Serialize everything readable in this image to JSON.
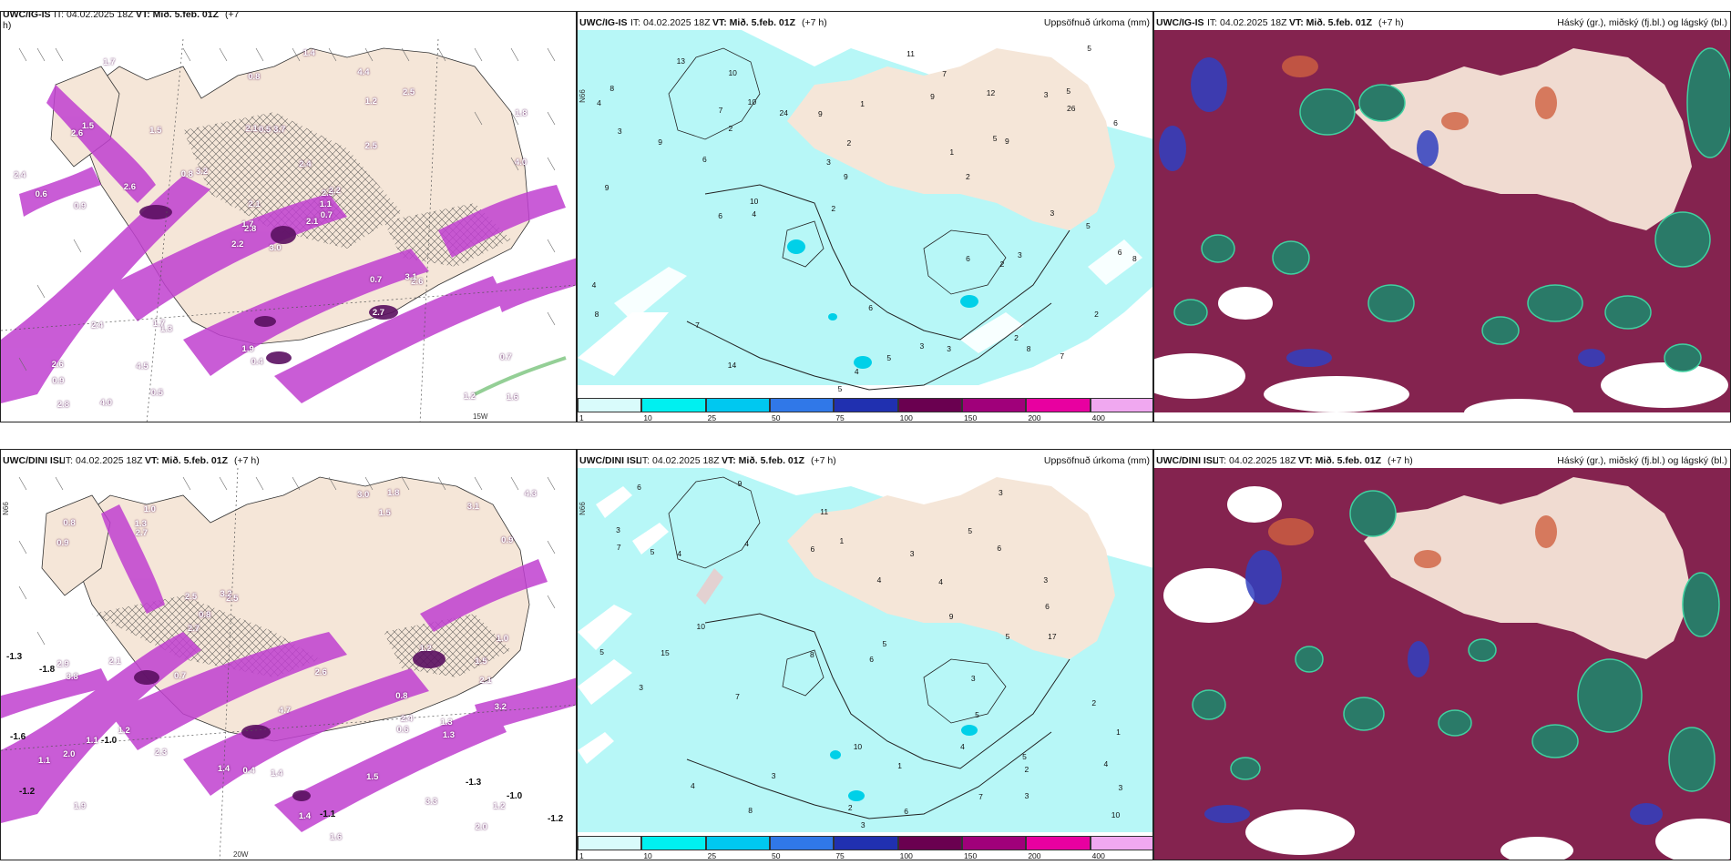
{
  "panels": {
    "top_left": {
      "model": "UWC/IG-IS",
      "it": "IT: 04.02.2025 18Z",
      "vt": "VT: Mið. 5.feb. 01Z",
      "lead": "(+7",
      "lead2": "h)",
      "labels": [
        "3.0",
        "2.6",
        "2.8",
        "2.6",
        "2.3",
        "1.3",
        "4.4",
        "3.7",
        "1.2",
        "2.1",
        "1.7",
        "1.6",
        "0.9",
        "1.8",
        "2.2",
        "2.5",
        "4.0",
        "2.1",
        "2.4",
        "2.4",
        "3.2",
        "0.9",
        "4.5",
        "0.5",
        "2.2",
        "2.6",
        "1.5",
        "0.8",
        "0.6",
        "0.7",
        "4.0",
        "1.7",
        "1.9",
        "2.1",
        "1.5",
        "2.5",
        "1.7",
        "1.2",
        "0.7",
        "3.1",
        "1.4",
        "0.8",
        "2.6",
        "2.7",
        "0.5",
        "2.4",
        "1.1",
        "2.8",
        "0.4",
        "0.7"
      ],
      "coord": "15W"
    },
    "top_mid": {
      "model": "UWC/IG-IS",
      "it": "IT: 04.02.2025 18Z",
      "vt": "VT: Mið. 5.feb. 01Z",
      "lead": "(+7 h)",
      "right": "Uppsöfnuð úrkoma (mm)",
      "coord": "N66",
      "numbers": [
        "3",
        "2",
        "2",
        "4",
        "3",
        "5",
        "6",
        "4",
        "5",
        "8",
        "6",
        "10",
        "5",
        "7",
        "9",
        "14",
        "10",
        "9",
        "7",
        "3",
        "8",
        "5",
        "9",
        "6",
        "12",
        "6",
        "26",
        "7",
        "13",
        "6",
        "4",
        "3",
        "5",
        "9",
        "8",
        "10",
        "24",
        "9",
        "11",
        "8",
        "9",
        "7",
        "3",
        "2",
        "5",
        "6",
        "4",
        "3",
        "2",
        "3",
        "2",
        "1",
        "2",
        "2",
        "1"
      ]
    },
    "top_right": {
      "model": "UWC/IG-IS",
      "it": "IT: 04.02.2025 18Z",
      "vt": "VT: Mið. 5.feb. 01Z",
      "lead": "(+7 h)",
      "right": "Háský (gr.), miðský (fj.bl.) og lágský (bl.)"
    },
    "bot_left": {
      "model": "UWC/DINI ISL",
      "it": "IT: 04.02.2025 18Z",
      "vt": "VT: Mið. 5.feb. 01Z",
      "lead": "(+7 h)",
      "labels": [
        "0.8",
        "2.1",
        "1.9",
        "1.0",
        "2.5",
        "3.3",
        "2.0",
        "1.5",
        "2.5",
        "1.6",
        "0.9",
        "2.9",
        "0.8",
        "1.2",
        "1.4",
        "1.0",
        "4.7",
        "2.6",
        "3.2",
        "1.2",
        "4.3",
        "3.1",
        "2.7",
        "3.2",
        "3.0",
        "1.3",
        "2.4",
        "3.8",
        "2.7",
        "1.2",
        "1.4",
        "1.5",
        "0.8",
        "0.7",
        "1.5",
        "1.3",
        "0.6",
        "2.1",
        "1.4",
        "1.1",
        "0.9",
        "1.8",
        "2.0",
        "0.4",
        "1.3",
        "2.3",
        "1.1"
      ],
      "neg_labels": [
        "-1.3",
        "-1.8",
        "-1.6",
        "-1.0",
        "-1.2",
        "-1.1",
        "-1.0",
        "-1.3",
        "-1.2"
      ],
      "coord": "20W",
      "coord_n": "N66"
    },
    "bot_mid": {
      "model": "UWC/DINI ISL",
      "it": "IT: 04.02.2025 18Z",
      "vt": "VT: Mið. 5.feb. 01Z",
      "lead": "(+7 h)",
      "right": "Uppsöfnuð úrkoma (mm)",
      "coord": "N66",
      "numbers": [
        "4",
        "2",
        "3",
        "3",
        "2",
        "1",
        "6",
        "5",
        "10",
        "3",
        "5",
        "3",
        "3",
        "5",
        "3",
        "6",
        "1",
        "4",
        "1",
        "5",
        "7",
        "10",
        "9",
        "8",
        "6",
        "4",
        "6",
        "10",
        "5",
        "11",
        "4",
        "15",
        "3",
        "17",
        "7",
        "6",
        "9",
        "4",
        "7",
        "3",
        "6",
        "5",
        "5",
        "8",
        "4",
        "3",
        "4",
        "2",
        "3"
      ]
    },
    "bot_right": {
      "model": "UWC/DINI ISL",
      "it": "IT: 04.02.2025 18Z",
      "vt": "VT: Mið. 5.feb. 01Z",
      "lead": "(+7 h)",
      "right": "Háský (gr.), miðský (fj.bl.) og lágský (bl.)"
    }
  },
  "precip_scale": {
    "ticks": [
      "1",
      "10",
      "25",
      "50",
      "75",
      "100",
      "150",
      "200",
      "400"
    ],
    "colors": [
      "#d9fbfb",
      "#00f0f0",
      "#00c8f0",
      "#3078e8",
      "#2030b0",
      "#6a0050",
      "#a0007a",
      "#e800a0",
      "#f0a8f0"
    ]
  },
  "colors": {
    "land": "#f5e6d8",
    "sea_precip": "#b7f7f7",
    "wind_purple": "#b040c0",
    "wind_dark": "#5a1060",
    "cloud_high": "#2a7a68",
    "cloud_mid": "#7a1040",
    "cloud_low": "#3040c0"
  }
}
